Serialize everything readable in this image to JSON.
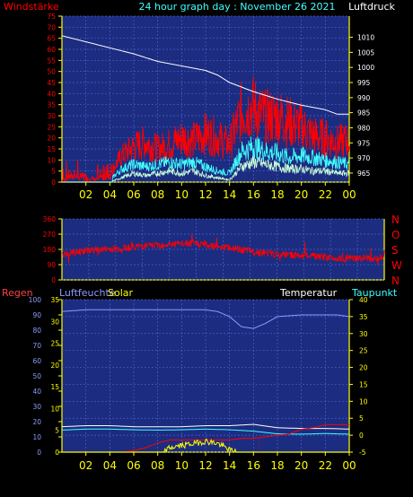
{
  "header": {
    "left_label": "Windstärke",
    "title": "24 hour graph day : November 26 2021",
    "right_label": "Luftdruck"
  },
  "colors": {
    "background": "#000000",
    "plot_bg": "#1c2c80",
    "grid": "#4c60c8",
    "yellow": "#ffff00",
    "red": "#ff0000",
    "white": "#ffffff",
    "cyan": "#40ffff",
    "mint": "#c8ffd8",
    "periwinkle": "#8c9cff"
  },
  "chart_data": [
    {
      "type": "line",
      "name": "wind-pressure",
      "x_ticks": [
        "02",
        "04",
        "06",
        "08",
        "10",
        "12",
        "14",
        "16",
        "18",
        "20",
        "22",
        "00"
      ],
      "y_left": {
        "label": "Windstärke",
        "ticks": [
          0,
          5,
          10,
          15,
          20,
          25,
          30,
          35,
          40,
          45,
          50,
          55,
          60,
          65,
          70,
          75
        ],
        "range": [
          0,
          75
        ]
      },
      "y_right": {
        "label": "Luftdruck",
        "ticks": [
          965,
          970,
          975,
          980,
          985,
          990,
          995,
          1000,
          1005,
          1010
        ],
        "range": [
          962,
          1017
        ]
      },
      "series": [
        {
          "axis": "right",
          "color": "#ffffff",
          "x": [
            0,
            2,
            4,
            6,
            8,
            10,
            12,
            13,
            14,
            16,
            18,
            20,
            22,
            23,
            24
          ],
          "y": [
            1010.5,
            1008.5,
            1006.5,
            1004.5,
            1002,
            1000.5,
            999,
            997.5,
            995,
            992,
            989.5,
            987.5,
            986,
            984.5,
            984.5
          ]
        },
        {
          "axis": "left",
          "color": "#ff0000",
          "x": [
            0,
            1,
            2,
            3,
            4,
            5,
            6,
            7,
            8,
            9,
            10,
            11,
            12,
            13,
            14,
            15,
            16,
            17,
            18,
            19,
            20,
            21,
            22,
            23,
            24
          ],
          "y": [
            1,
            3,
            2,
            1,
            4,
            12,
            16,
            18,
            15,
            17,
            20,
            19,
            22,
            20,
            17,
            32,
            34,
            29,
            30,
            27,
            25,
            21,
            20,
            18,
            19
          ]
        },
        {
          "axis": "left",
          "color": "#40ffff",
          "x": [
            0,
            1,
            2,
            3,
            4,
            5,
            6,
            7,
            8,
            9,
            10,
            11,
            12,
            13,
            14,
            15,
            16,
            17,
            18,
            19,
            20,
            21,
            22,
            23,
            24
          ],
          "y": [
            0,
            0,
            0,
            0,
            1,
            6,
            8,
            7,
            8,
            9,
            8,
            9,
            7,
            5,
            4,
            14,
            16,
            14,
            13,
            11,
            12,
            11,
            10,
            9,
            8
          ]
        },
        {
          "axis": "left",
          "color": "#c8ffd8",
          "x": [
            0,
            1,
            2,
            3,
            4,
            5,
            6,
            7,
            8,
            9,
            10,
            11,
            12,
            13,
            14,
            15,
            16,
            17,
            18,
            19,
            20,
            21,
            22,
            23,
            24
          ],
          "y": [
            0,
            0,
            0,
            0,
            0,
            2,
            4,
            3,
            4,
            5,
            4,
            5,
            3,
            2,
            1,
            7,
            9,
            8,
            7,
            6,
            6,
            5,
            5,
            4,
            4
          ]
        }
      ]
    },
    {
      "type": "line",
      "name": "wind-direction",
      "y_left": {
        "ticks": [
          0,
          90,
          180,
          270,
          360
        ],
        "range": [
          0,
          360
        ]
      },
      "y_right": {
        "ticks": [
          "N",
          "W",
          "S",
          "O",
          "N"
        ]
      },
      "series": [
        {
          "color": "#ff0000",
          "x": [
            0,
            2,
            4,
            6,
            8,
            10,
            12,
            14,
            16,
            18,
            20,
            22,
            24
          ],
          "y": [
            150,
            175,
            185,
            200,
            210,
            215,
            195,
            170,
            150,
            145,
            130,
            125,
            130
          ]
        }
      ]
    },
    {
      "type": "line",
      "name": "rain-humidity-solar-temp",
      "labels": {
        "regen": "Regen",
        "luftfeuchte": "Luftfeuchte",
        "solar": "Solar",
        "temperatur": "Temperatur",
        "taupunkt": "Taupunkt"
      },
      "x_ticks": [
        "02",
        "04",
        "06",
        "08",
        "10",
        "12",
        "14",
        "16",
        "18",
        "20",
        "22",
        "00"
      ],
      "y_left": {
        "ticks": [
          0,
          10,
          20,
          30,
          40,
          50,
          60,
          70,
          80,
          90,
          100
        ],
        "range": [
          0,
          100
        ]
      },
      "y_left2": {
        "ticks": [
          0,
          5,
          10,
          15,
          20,
          25,
          30,
          35
        ],
        "range": [
          0,
          35
        ]
      },
      "y_right": {
        "ticks": [
          -5,
          0,
          5,
          10,
          15,
          20,
          25,
          30,
          35,
          40
        ],
        "range": [
          -5,
          40
        ]
      },
      "series": [
        {
          "axis": "right",
          "name": "Luftfeuchte",
          "color": "#8c9cff",
          "x": [
            0,
            2,
            4,
            6,
            8,
            10,
            12,
            13,
            14,
            15,
            16,
            17,
            18,
            20,
            22,
            23,
            24
          ],
          "y": [
            36.5,
            37,
            37,
            37,
            37,
            37,
            37,
            36.5,
            35,
            32,
            31.5,
            33,
            35,
            35.5,
            35.5,
            35.5,
            35
          ]
        },
        {
          "axis": "right",
          "name": "Temperatur",
          "color": "#ffffff",
          "x": [
            0,
            2,
            4,
            6,
            8,
            10,
            12,
            14,
            16,
            18,
            20,
            22,
            24
          ],
          "y": [
            2.5,
            2.8,
            2.8,
            2.5,
            2.5,
            2.5,
            2.8,
            2.8,
            3.2,
            2.2,
            2,
            2,
            1.8
          ]
        },
        {
          "axis": "right",
          "name": "Taupunkt",
          "color": "#40ffff",
          "x": [
            0,
            2,
            4,
            6,
            8,
            10,
            12,
            14,
            16,
            18,
            20,
            22,
            24
          ],
          "y": [
            1.5,
            1.8,
            1.8,
            1.6,
            1.5,
            1.6,
            1.8,
            1.6,
            1.2,
            0.4,
            0.3,
            0.5,
            0.3
          ]
        },
        {
          "axis": "left",
          "name": "Regen",
          "color": "#ff0000",
          "x": [
            0,
            5,
            6,
            7,
            8,
            9,
            10,
            12,
            14,
            15,
            16,
            17,
            18,
            19,
            20,
            21,
            22,
            23,
            24
          ],
          "y": [
            0,
            0,
            1,
            3,
            6,
            8,
            8,
            8,
            8,
            9,
            9,
            10,
            11,
            12,
            15,
            16,
            18,
            18,
            18
          ]
        },
        {
          "axis": "left2",
          "name": "Solar",
          "color": "#ffff00",
          "x": [
            0,
            8.5,
            9,
            10,
            11,
            12,
            13,
            14,
            14.5,
            24
          ],
          "y": [
            0,
            0,
            1,
            1.5,
            2,
            2.5,
            2,
            0.5,
            0,
            0
          ]
        }
      ]
    }
  ]
}
